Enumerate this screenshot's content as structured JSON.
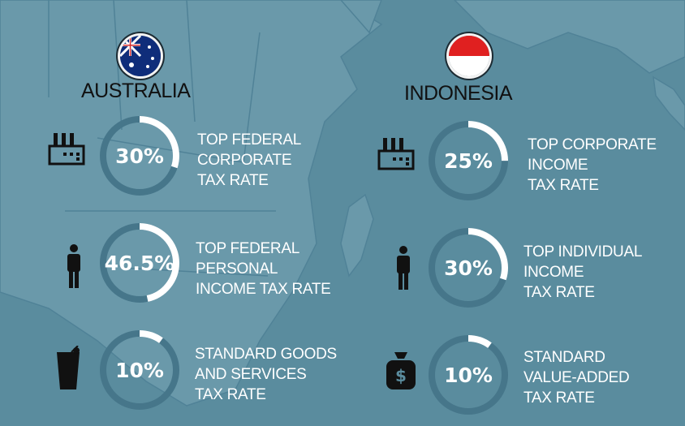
{
  "countries": [
    {
      "name": "AUSTRALIA",
      "flag": "australia-flag",
      "stats": [
        {
          "value": "30%",
          "fraction": 0.3,
          "icon": "factory-icon",
          "label": [
            "TOP FEDERAL",
            "CORPORATE",
            "TAX RATE"
          ]
        },
        {
          "value": "46.5%",
          "fraction": 0.465,
          "icon": "person-icon",
          "label": [
            "TOP FEDERAL",
            "PERSONAL",
            "INCOME TAX RATE"
          ]
        },
        {
          "value": "10%",
          "fraction": 0.1,
          "icon": "drink-icon",
          "label": [
            "STANDARD GOODS",
            "AND SERVICES",
            "TAX RATE"
          ]
        }
      ]
    },
    {
      "name": "INDONESIA",
      "flag": "indonesia-flag",
      "stats": [
        {
          "value": "25%",
          "fraction": 0.25,
          "icon": "factory-icon",
          "label": [
            "TOP CORPORATE",
            "INCOME",
            "TAX RATE"
          ]
        },
        {
          "value": "30%",
          "fraction": 0.3,
          "icon": "person-icon",
          "label": [
            "TOP INDIVIDUAL",
            "INCOME",
            "TAX RATE"
          ]
        },
        {
          "value": "10%",
          "fraction": 0.1,
          "icon": "money-bag-icon",
          "label": [
            "STANDARD",
            "VALUE-ADDED",
            "TAX RATE"
          ]
        }
      ]
    }
  ],
  "colors": {
    "background": "#5a8c9e",
    "map_land": "#6b9aab",
    "gauge_track": "#46768a",
    "gauge_fill": "#ffffff"
  }
}
